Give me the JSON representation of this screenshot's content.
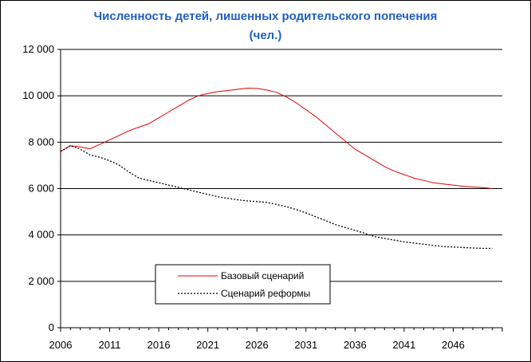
{
  "chart_data": {
    "type": "line",
    "title": [
      "Численность детей, лишенных родительского попечения",
      "(чел.)"
    ],
    "xlim": [
      2006,
      2051
    ],
    "x_ticks": [
      "2006",
      "2011",
      "2016",
      "2021",
      "2026",
      "2031",
      "2036",
      "2041",
      "2046"
    ],
    "ylim": [
      0,
      12000
    ],
    "y_ticks": [
      "0",
      "2 000",
      "4 000",
      "6 000",
      "8 000",
      "10 000",
      "12 000"
    ],
    "grid": "horizontal",
    "legend_position": "lower-left",
    "series": [
      {
        "name": "Базовый сценарий",
        "color": "#e00000",
        "style": "solid",
        "x": [
          2006,
          2007,
          2008,
          2009,
          2010,
          2011,
          2012,
          2013,
          2014,
          2015,
          2016,
          2017,
          2018,
          2019,
          2020,
          2021,
          2022,
          2023,
          2024,
          2025,
          2026,
          2027,
          2028,
          2029,
          2030,
          2031,
          2032,
          2033,
          2034,
          2035,
          2036,
          2037,
          2038,
          2039,
          2040,
          2041,
          2042,
          2043,
          2044,
          2045,
          2046,
          2047,
          2048,
          2049,
          2050
        ],
        "values": [
          7600,
          7850,
          7800,
          7720,
          7900,
          8100,
          8300,
          8500,
          8650,
          8800,
          9050,
          9300,
          9550,
          9800,
          10000,
          10100,
          10180,
          10230,
          10280,
          10330,
          10320,
          10250,
          10150,
          9950,
          9700,
          9400,
          9100,
          8750,
          8400,
          8050,
          7700,
          7450,
          7200,
          6950,
          6750,
          6600,
          6450,
          6350,
          6250,
          6200,
          6150,
          6100,
          6070,
          6040,
          6000
        ]
      },
      {
        "name": "Сценарий реформы",
        "color": "#000000",
        "style": "dotted",
        "x": [
          2006,
          2007,
          2008,
          2009,
          2010,
          2011,
          2012,
          2013,
          2014,
          2015,
          2016,
          2017,
          2018,
          2019,
          2020,
          2021,
          2022,
          2023,
          2024,
          2025,
          2026,
          2027,
          2028,
          2029,
          2030,
          2031,
          2032,
          2033,
          2034,
          2035,
          2036,
          2037,
          2038,
          2039,
          2040,
          2041,
          2042,
          2043,
          2044,
          2045,
          2046,
          2047,
          2048,
          2049,
          2050
        ],
        "values": [
          7600,
          7850,
          7700,
          7450,
          7350,
          7200,
          7000,
          6700,
          6450,
          6350,
          6250,
          6150,
          6050,
          5950,
          5850,
          5750,
          5650,
          5580,
          5520,
          5470,
          5440,
          5400,
          5320,
          5220,
          5100,
          4950,
          4780,
          4620,
          4450,
          4320,
          4200,
          4070,
          3930,
          3850,
          3780,
          3700,
          3650,
          3600,
          3550,
          3500,
          3480,
          3460,
          3440,
          3420,
          3420
        ]
      }
    ]
  }
}
